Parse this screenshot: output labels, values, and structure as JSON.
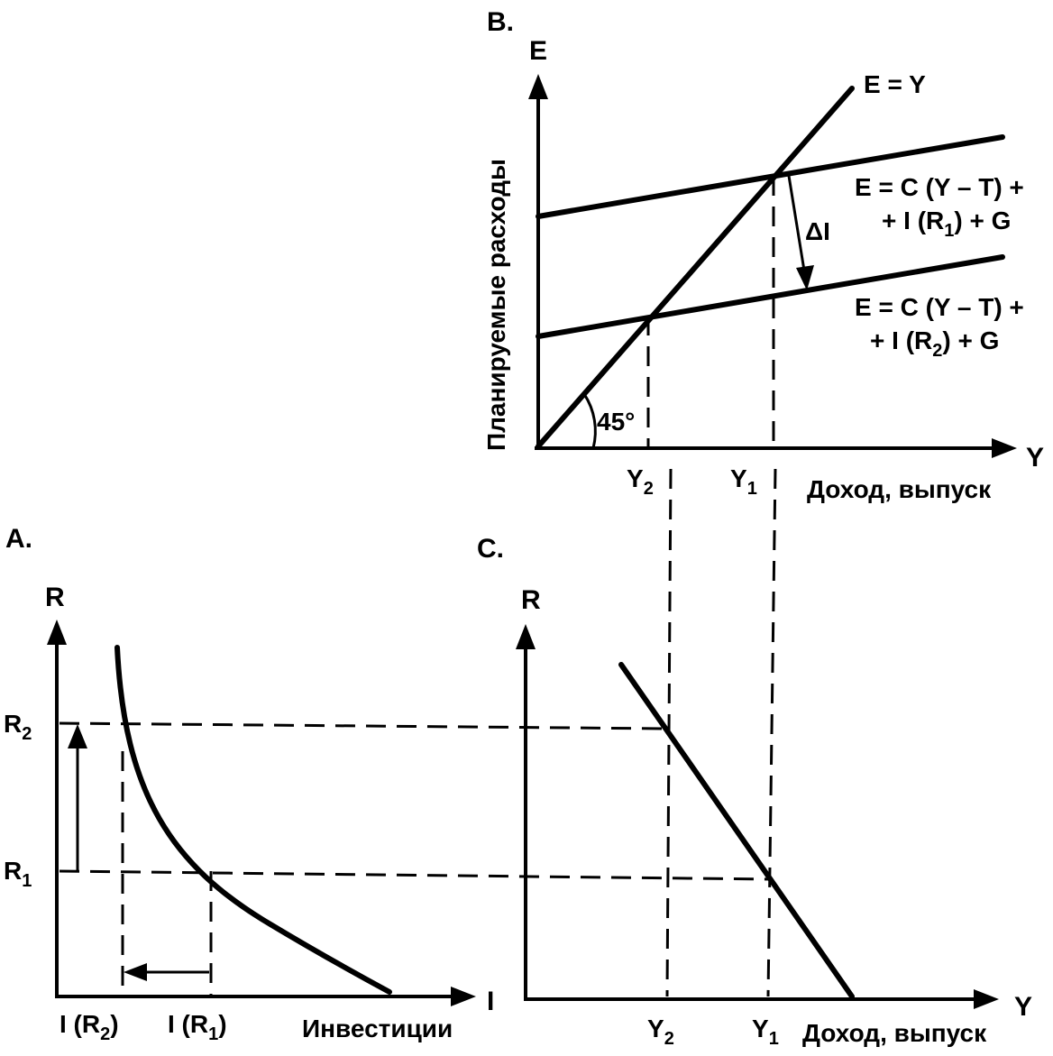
{
  "panel_b": {
    "panel_label": "B.",
    "y_axis_symbol": "E",
    "y_axis_title": "Планируемые расходы",
    "x_axis_symbol": "Y",
    "x_axis_title": "Доход, выпуск",
    "line_45_label": "E = Y",
    "angle_label": "45°",
    "upper_line_label_1": "E = C (Y – T) +",
    "upper_line_label_2": "+ I (R",
    "upper_line_label_2_sub": "1",
    "upper_line_label_2_end": ") + G",
    "lower_line_label_1": "E = C (Y – T) +",
    "lower_line_label_2": "+ I (R",
    "lower_line_label_2_sub": "2",
    "lower_line_label_2_end": ") + G",
    "shift_label": "ΔI",
    "tick_y2": "Y",
    "tick_y2_sub": "2",
    "tick_y1": "Y",
    "tick_y1_sub": "1"
  },
  "panel_a": {
    "panel_label": "A.",
    "y_axis_symbol": "R",
    "x_axis_symbol": "I",
    "x_axis_title": "Инвестиции",
    "tick_r2": "R",
    "tick_r2_sub": "2",
    "tick_r1": "R",
    "tick_r1_sub": "1",
    "tick_ir2": "I (R",
    "tick_ir2_sub": "2",
    "tick_ir2_end": ")",
    "tick_ir1": "I (R",
    "tick_ir1_sub": "1",
    "tick_ir1_end": ")"
  },
  "panel_c": {
    "panel_label": "C.",
    "y_axis_symbol": "R",
    "x_axis_symbol": "Y",
    "x_axis_title": "Доход, выпуск",
    "tick_y2": "Y",
    "tick_y2_sub": "2",
    "tick_y1": "Y",
    "tick_y1_sub": "1"
  }
}
